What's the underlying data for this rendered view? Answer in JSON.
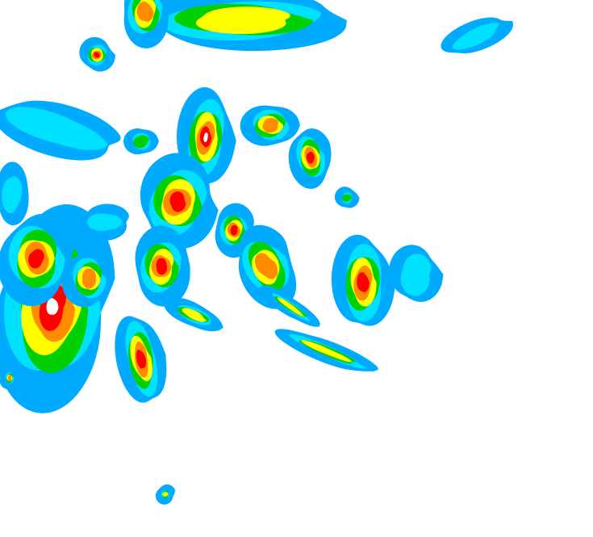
{
  "map": {
    "type": "weather-radar-reflectivity",
    "palette": {
      "light_blue": "#00aaff",
      "cyan": "#00e0ff",
      "dark_green": "#004d00",
      "green": "#00d000",
      "yellow": "#ffff00",
      "orange": "#ff8c00",
      "red": "#ff0000",
      "white_core": "#ffffff"
    }
  }
}
